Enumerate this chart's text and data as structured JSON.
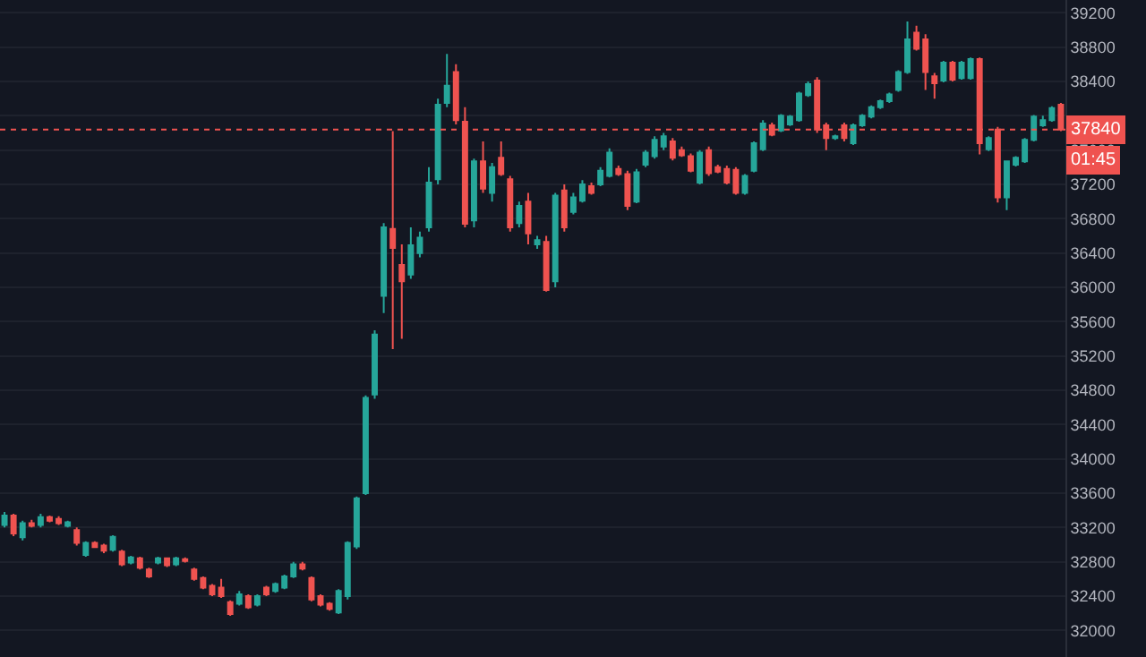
{
  "chart_data": {
    "type": "candlestick",
    "categories": [
      null,
      null,
      null,
      null,
      null,
      null,
      null,
      null,
      null,
      null,
      null,
      null,
      null,
      null,
      null,
      null,
      null,
      null,
      null,
      null,
      null,
      null,
      null,
      null,
      null,
      null,
      null,
      null,
      null,
      null,
      null,
      null,
      null,
      null,
      null,
      null,
      null,
      null,
      null,
      null,
      null,
      null,
      null,
      null,
      null,
      null,
      null,
      null,
      null,
      null,
      null,
      null,
      null,
      null,
      null,
      null,
      null,
      null,
      null,
      null,
      null,
      null,
      null,
      null,
      null,
      null,
      null,
      null,
      null,
      null,
      null,
      null,
      null,
      null,
      null,
      null,
      null,
      null,
      null,
      null,
      null,
      null,
      null,
      null,
      null,
      null,
      null,
      null,
      null,
      null,
      null,
      null,
      null,
      null,
      null,
      null,
      null,
      null,
      null,
      null,
      null,
      null,
      null,
      null,
      null,
      null,
      null,
      null,
      null,
      null,
      null,
      null,
      null,
      null,
      null,
      null,
      null,
      null
    ],
    "ohlc": [
      [
        33230,
        33380,
        33200,
        33340
      ],
      [
        33340,
        33360,
        33100,
        33130
      ],
      [
        33085,
        33280,
        33050,
        33250
      ],
      [
        33250,
        33290,
        33200,
        33220
      ],
      [
        33230,
        33360,
        33200,
        33320
      ],
      [
        33320,
        33340,
        33260,
        33280
      ],
      [
        33300,
        33330,
        33230,
        33250
      ],
      [
        33220,
        33280,
        33200,
        33260
      ],
      [
        33170,
        33200,
        32990,
        33020
      ],
      [
        32880,
        33040,
        32860,
        33020
      ],
      [
        33020,
        33040,
        32960,
        32970
      ],
      [
        32990,
        33010,
        32900,
        32930
      ],
      [
        32940,
        33110,
        32920,
        33090
      ],
      [
        32920,
        32940,
        32750,
        32770
      ],
      [
        32790,
        32870,
        32770,
        32850
      ],
      [
        32840,
        32860,
        32710,
        32730
      ],
      [
        32710,
        32730,
        32610,
        32630
      ],
      [
        32790,
        32860,
        32770,
        32840
      ],
      [
        32840,
        32850,
        32740,
        32760
      ],
      [
        32770,
        32860,
        32750,
        32840
      ],
      [
        32830,
        32850,
        32790,
        32810
      ],
      [
        32710,
        32730,
        32580,
        32600
      ],
      [
        32610,
        32630,
        32480,
        32500
      ],
      [
        32520,
        32540,
        32400,
        32420
      ],
      [
        32500,
        32600,
        32380,
        32400
      ],
      [
        32330,
        32350,
        32170,
        32190
      ],
      [
        32310,
        32460,
        32290,
        32420
      ],
      [
        32400,
        32420,
        32250,
        32270
      ],
      [
        32300,
        32420,
        32280,
        32400
      ],
      [
        32500,
        32520,
        32400,
        32420
      ],
      [
        32460,
        32560,
        32440,
        32540
      ],
      [
        32500,
        32650,
        32480,
        32630
      ],
      [
        32630,
        32800,
        32610,
        32770
      ],
      [
        32770,
        32800,
        32700,
        32720
      ],
      [
        32610,
        32630,
        32340,
        32360
      ],
      [
        32400,
        32420,
        32280,
        32300
      ],
      [
        32310,
        32330,
        32230,
        32250
      ],
      [
        32210,
        32480,
        32190,
        32460
      ],
      [
        32400,
        33040,
        32360,
        33020
      ],
      [
        32980,
        33560,
        32950,
        33540
      ],
      [
        33600,
        34740,
        33580,
        34710
      ],
      [
        34750,
        35500,
        34700,
        35450
      ],
      [
        35900,
        36750,
        35700,
        36700
      ],
      [
        36680,
        37820,
        35280,
        36460
      ],
      [
        36260,
        36500,
        35400,
        36070
      ],
      [
        36150,
        36700,
        36100,
        36490
      ],
      [
        36400,
        36650,
        36350,
        36580
      ],
      [
        36700,
        37400,
        36650,
        37220
      ],
      [
        37260,
        38200,
        37200,
        38130
      ],
      [
        38150,
        38720,
        38100,
        38350
      ],
      [
        38510,
        38600,
        37900,
        37950
      ],
      [
        37930,
        38100,
        36700,
        36740
      ],
      [
        36780,
        37500,
        36700,
        37470
      ],
      [
        37470,
        37700,
        37100,
        37150
      ],
      [
        37100,
        37450,
        37000,
        37400
      ],
      [
        37510,
        37700,
        37300,
        37320
      ],
      [
        37260,
        37300,
        36650,
        36700
      ],
      [
        36750,
        37000,
        36700,
        36950
      ],
      [
        37000,
        37100,
        36500,
        36630
      ],
      [
        36500,
        36600,
        36450,
        36550
      ],
      [
        36530,
        36600,
        35950,
        35970
      ],
      [
        36070,
        37100,
        36000,
        37070
      ],
      [
        37130,
        37200,
        36650,
        36700
      ],
      [
        36880,
        37100,
        36850,
        37050
      ],
      [
        37010,
        37250,
        36990,
        37200
      ],
      [
        37180,
        37220,
        37080,
        37100
      ],
      [
        37200,
        37400,
        37180,
        37360
      ],
      [
        37300,
        37620,
        37280,
        37570
      ],
      [
        37380,
        37420,
        37300,
        37320
      ],
      [
        37320,
        37360,
        36900,
        36950
      ],
      [
        37000,
        37380,
        36980,
        37340
      ],
      [
        37430,
        37600,
        37400,
        37570
      ],
      [
        37530,
        37760,
        37500,
        37720
      ],
      [
        37640,
        37800,
        37600,
        37760
      ],
      [
        37700,
        37740,
        37480,
        37510
      ],
      [
        37600,
        37640,
        37520,
        37540
      ],
      [
        37530,
        37560,
        37340,
        37360
      ],
      [
        37220,
        37600,
        37200,
        37570
      ],
      [
        37600,
        37640,
        37300,
        37330
      ],
      [
        37400,
        37430,
        37330,
        37350
      ],
      [
        37380,
        37420,
        37200,
        37220
      ],
      [
        37370,
        37400,
        37080,
        37100
      ],
      [
        37100,
        37320,
        37080,
        37300
      ],
      [
        37360,
        37700,
        37340,
        37680
      ],
      [
        37610,
        37950,
        37590,
        37910
      ],
      [
        37890,
        37920,
        37760,
        37780
      ],
      [
        37830,
        38020,
        37810,
        38000
      ],
      [
        37900,
        38010,
        37880,
        37990
      ],
      [
        37950,
        38280,
        37930,
        38260
      ],
      [
        38240,
        38400,
        38220,
        38370
      ],
      [
        38410,
        38450,
        37800,
        37840
      ],
      [
        37890,
        37920,
        37600,
        37740
      ],
      [
        37740,
        37780,
        37720,
        37760
      ],
      [
        37890,
        37920,
        37700,
        37740
      ],
      [
        37680,
        37910,
        37660,
        37890
      ],
      [
        37890,
        38020,
        37870,
        38000
      ],
      [
        37990,
        38120,
        37970,
        38100
      ],
      [
        38100,
        38190,
        38080,
        38170
      ],
      [
        38170,
        38270,
        38150,
        38250
      ],
      [
        38300,
        38530,
        38280,
        38510
      ],
      [
        38510,
        39100,
        38490,
        38890
      ],
      [
        38970,
        39050,
        38760,
        38780
      ],
      [
        38890,
        38950,
        38300,
        38510
      ],
      [
        38460,
        38500,
        38200,
        38380
      ],
      [
        38410,
        38640,
        38390,
        38620
      ],
      [
        38620,
        38640,
        38400,
        38420
      ],
      [
        38440,
        38640,
        38420,
        38620
      ],
      [
        38440,
        38680,
        38420,
        38660
      ],
      [
        38660,
        38680,
        37550,
        37680
      ],
      [
        37610,
        37760,
        37590,
        37740
      ],
      [
        37840,
        37870,
        36990,
        37050
      ],
      [
        37050,
        37480,
        36900,
        37470
      ],
      [
        37430,
        37530,
        37410,
        37510
      ],
      [
        37470,
        37740,
        37450,
        37720
      ],
      [
        37720,
        38010,
        37700,
        37990
      ],
      [
        37890,
        38000,
        37870,
        37950
      ],
      [
        37950,
        38110,
        37930,
        38090
      ],
      [
        38130,
        38150,
        37820,
        37840
      ]
    ],
    "colors": [
      "#26a69a",
      "#ef5350",
      "#26a69a",
      "#ef5350",
      "#26a69a",
      "#ef5350",
      "#ef5350",
      "#26a69a",
      "#ef5350",
      "#26a69a",
      "#ef5350",
      "#ef5350",
      "#26a69a",
      "#ef5350",
      "#26a69a",
      "#ef5350",
      "#ef5350",
      "#26a69a",
      "#ef5350",
      "#26a69a",
      "#ef5350",
      "#ef5350",
      "#ef5350",
      "#ef5350",
      "#ef5350",
      "#ef5350",
      "#26a69a",
      "#ef5350",
      "#26a69a",
      "#ef5350",
      "#26a69a",
      "#26a69a",
      "#26a69a",
      "#ef5350",
      "#ef5350",
      "#ef5350",
      "#ef5350",
      "#26a69a",
      "#26a69a",
      "#26a69a",
      "#26a69a",
      "#26a69a",
      "#26a69a",
      "#ef5350",
      "#ef5350",
      "#26a69a",
      "#26a69a",
      "#26a69a",
      "#26a69a",
      "#26a69a",
      "#ef5350",
      "#ef5350",
      "#26a69a",
      "#ef5350",
      "#26a69a",
      "#ef5350",
      "#ef5350",
      "#26a69a",
      "#ef5350",
      "#26a69a",
      "#ef5350",
      "#26a69a",
      "#ef5350",
      "#26a69a",
      "#26a69a",
      "#ef5350",
      "#26a69a",
      "#26a69a",
      "#ef5350",
      "#ef5350",
      "#26a69a",
      "#26a69a",
      "#26a69a",
      "#26a69a",
      "#ef5350",
      "#ef5350",
      "#ef5350",
      "#26a69a",
      "#ef5350",
      "#ef5350",
      "#ef5350",
      "#ef5350",
      "#26a69a",
      "#26a69a",
      "#26a69a",
      "#ef5350",
      "#26a69a",
      "#26a69a",
      "#26a69a",
      "#26a69a",
      "#ef5350",
      "#ef5350",
      "#26a69a",
      "#ef5350",
      "#26a69a",
      "#26a69a",
      "#26a69a",
      "#26a69a",
      "#26a69a",
      "#26a69a",
      "#26a69a",
      "#ef5350",
      "#ef5350",
      "#ef5350",
      "#26a69a",
      "#ef5350",
      "#26a69a",
      "#26a69a",
      "#ef5350",
      "#26a69a",
      "#ef5350",
      "#26a69a",
      "#26a69a",
      "#26a69a",
      "#26a69a",
      "#26a69a",
      "#26a69a",
      "#ef5350"
    ],
    "ylim": [
      31690,
      39350
    ],
    "yticks": [
      32000,
      32400,
      32800,
      33200,
      33600,
      34000,
      34400,
      34800,
      35200,
      35600,
      36000,
      36400,
      36800,
      37200,
      37600,
      {
        "value": 38000,
        "label": null
      },
      38400,
      38800,
      39200
    ],
    "grid": "y",
    "tick_labels": "y",
    "ref_lines": [
      {
        "axis": "y",
        "value": 37840,
        "label": "37840",
        "color": "#ef5350",
        "line_style": "dotted"
      }
    ],
    "annotations": [
      "01:45"
    ]
  }
}
